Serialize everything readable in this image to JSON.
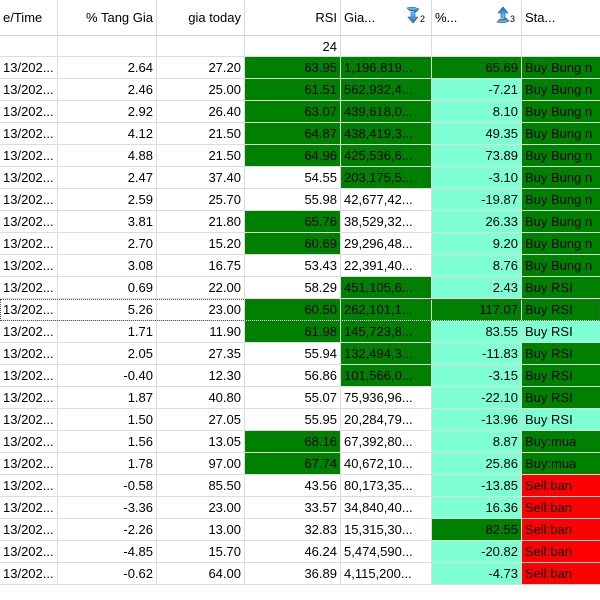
{
  "columns": [
    {
      "label": "e/Time"
    },
    {
      "label": "% Tang Gia"
    },
    {
      "label": "gia today"
    },
    {
      "label": "RSI"
    },
    {
      "label": "Gia...",
      "sort": {
        "direction": "desc",
        "priority": "2",
        "icon": "sort-descending-icon"
      }
    },
    {
      "label": "%...",
      "sort": {
        "direction": "asc",
        "priority": "3",
        "icon": "sort-ascending-icon"
      }
    },
    {
      "label": "Sta..."
    }
  ],
  "summary": {
    "rsi": "24"
  },
  "colors": {
    "dark_green": "#008000",
    "light_green": "#7fffd4",
    "red": "#ff0000",
    "grid": "#dcdcdc"
  },
  "rows": [
    {
      "time": "13/202...",
      "tang": "2.64",
      "gia": "27.20",
      "rsi": "63.95",
      "rsi_c": "dg",
      "vol": "1,196,819...",
      "vol_c": "dg",
      "pct": "65.69",
      "pct_c": "dg",
      "status": "Buy Bung n",
      "st_c": "dg"
    },
    {
      "time": "13/202...",
      "tang": "2.46",
      "gia": "25.00",
      "rsi": "61.51",
      "rsi_c": "dg",
      "vol": "562,932,4...",
      "vol_c": "dg",
      "pct": "-7.21",
      "pct_c": "lg",
      "status": "Buy Bung n",
      "st_c": "dg"
    },
    {
      "time": "13/202...",
      "tang": "2.92",
      "gia": "26.40",
      "rsi": "63.07",
      "rsi_c": "dg",
      "vol": "439,618,0...",
      "vol_c": "dg",
      "pct": "8.10",
      "pct_c": "lg",
      "status": "Buy Bung n",
      "st_c": "dg"
    },
    {
      "time": "13/202...",
      "tang": "4.12",
      "gia": "21.50",
      "rsi": "64.87",
      "rsi_c": "dg",
      "vol": "438,419,3...",
      "vol_c": "dg",
      "pct": "49.35",
      "pct_c": "lg",
      "status": "Buy Bung n",
      "st_c": "dg"
    },
    {
      "time": "13/202...",
      "tang": "4.88",
      "gia": "21.50",
      "rsi": "64.96",
      "rsi_c": "dg",
      "vol": "425,536,6...",
      "vol_c": "dg",
      "pct": "73.89",
      "pct_c": "lg",
      "status": "Buy Bung n",
      "st_c": "dg"
    },
    {
      "time": "13/202...",
      "tang": "2.47",
      "gia": "37.40",
      "rsi": "54.55",
      "rsi_c": "wh",
      "vol": "203,175,5...",
      "vol_c": "dg",
      "pct": "-3.10",
      "pct_c": "lg",
      "status": "Buy Bung n",
      "st_c": "dg"
    },
    {
      "time": "13/202...",
      "tang": "2.59",
      "gia": "25.70",
      "rsi": "55.98",
      "rsi_c": "wh",
      "vol": "42,677,42...",
      "vol_c": "wh",
      "pct": "-19.87",
      "pct_c": "lg",
      "status": "Buy Bung n",
      "st_c": "dg"
    },
    {
      "time": "13/202...",
      "tang": "3.81",
      "gia": "21.80",
      "rsi": "65.76",
      "rsi_c": "dg",
      "vol": "38,529,32...",
      "vol_c": "wh",
      "pct": "26.33",
      "pct_c": "lg",
      "status": "Buy Bung n",
      "st_c": "dg"
    },
    {
      "time": "13/202...",
      "tang": "2.70",
      "gia": "15.20",
      "rsi": "60.69",
      "rsi_c": "dg",
      "vol": "29,296,48...",
      "vol_c": "wh",
      "pct": "9.20",
      "pct_c": "lg",
      "status": "Buy Bung n",
      "st_c": "dg"
    },
    {
      "time": "13/202...",
      "tang": "3.08",
      "gia": "16.75",
      "rsi": "53.43",
      "rsi_c": "wh",
      "vol": "22,391,40...",
      "vol_c": "wh",
      "pct": "8.76",
      "pct_c": "lg",
      "status": "Buy Bung n",
      "st_c": "dg"
    },
    {
      "time": "13/202...",
      "tang": "0.69",
      "gia": "22.00",
      "rsi": "58.29",
      "rsi_c": "wh",
      "vol": "451,105,6...",
      "vol_c": "dg",
      "pct": "2.43",
      "pct_c": "lg",
      "status": "Buy RSI",
      "st_c": "dg"
    },
    {
      "time": "13/202...",
      "tang": "5.26",
      "gia": "23.00",
      "rsi": "60.50",
      "rsi_c": "dg",
      "vol": "262,101,1...",
      "vol_c": "dg",
      "pct": "117.07",
      "pct_c": "dg",
      "status": "Buy RSI",
      "st_c": "dg",
      "selected": true
    },
    {
      "time": "13/202...",
      "tang": "1.71",
      "gia": "11.90",
      "rsi": "61.98",
      "rsi_c": "dg",
      "vol": "145,723,8...",
      "vol_c": "dg",
      "pct": "83.55",
      "pct_c": "lg",
      "status": "Buy RSI",
      "st_c": "lg"
    },
    {
      "time": "13/202...",
      "tang": "2.05",
      "gia": "27.35",
      "rsi": "55.94",
      "rsi_c": "wh",
      "vol": "132,494,3...",
      "vol_c": "dg",
      "pct": "-11.83",
      "pct_c": "lg",
      "status": "Buy RSI",
      "st_c": "dg"
    },
    {
      "time": "13/202...",
      "tang": "-0.40",
      "gia": "12.30",
      "rsi": "56.86",
      "rsi_c": "wh",
      "vol": "101,566,0...",
      "vol_c": "dg",
      "pct": "-3.15",
      "pct_c": "lg",
      "status": "Buy RSI",
      "st_c": "dg"
    },
    {
      "time": "13/202...",
      "tang": "1.87",
      "gia": "40.80",
      "rsi": "55.07",
      "rsi_c": "wh",
      "vol": "75,936,96...",
      "vol_c": "wh",
      "pct": "-22.10",
      "pct_c": "lg",
      "status": "Buy RSI",
      "st_c": "dg"
    },
    {
      "time": "13/202...",
      "tang": "1.50",
      "gia": "27.05",
      "rsi": "55.95",
      "rsi_c": "wh",
      "vol": "20,284,79...",
      "vol_c": "wh",
      "pct": "-13.96",
      "pct_c": "lg",
      "status": "Buy RSI",
      "st_c": "lg"
    },
    {
      "time": "13/202...",
      "tang": "1.56",
      "gia": "13.05",
      "rsi": "68.16",
      "rsi_c": "dg",
      "vol": "67,392,80...",
      "vol_c": "wh",
      "pct": "8.87",
      "pct_c": "lg",
      "status": "Buy:mua",
      "st_c": "dg"
    },
    {
      "time": "13/202...",
      "tang": "1.78",
      "gia": "97.00",
      "rsi": "67.74",
      "rsi_c": "dg",
      "vol": "40,672,10...",
      "vol_c": "wh",
      "pct": "25.86",
      "pct_c": "lg",
      "status": "Buy:mua",
      "st_c": "dg"
    },
    {
      "time": "13/202...",
      "tang": "-0.58",
      "gia": "85.50",
      "rsi": "43.56",
      "rsi_c": "wh",
      "vol": "80,173,35...",
      "vol_c": "wh",
      "pct": "-13.85",
      "pct_c": "lg",
      "status": "Sell:ban",
      "st_c": "rd"
    },
    {
      "time": "13/202...",
      "tang": "-3.36",
      "gia": "23.00",
      "rsi": "33.57",
      "rsi_c": "wh",
      "vol": "34,840,40...",
      "vol_c": "wh",
      "pct": "16.36",
      "pct_c": "lg",
      "status": "Sell:ban",
      "st_c": "rd"
    },
    {
      "time": "13/202...",
      "tang": "-2.26",
      "gia": "13.00",
      "rsi": "32.83",
      "rsi_c": "wh",
      "vol": "15,315,30...",
      "vol_c": "wh",
      "pct": "82.55",
      "pct_c": "dg",
      "status": "Sell:ban",
      "st_c": "rd"
    },
    {
      "time": "13/202...",
      "tang": "-4.85",
      "gia": "15.70",
      "rsi": "46.24",
      "rsi_c": "wh",
      "vol": "5,474,590...",
      "vol_c": "wh",
      "pct": "-20.82",
      "pct_c": "lg",
      "status": "Sell:ban",
      "st_c": "rd"
    },
    {
      "time": "13/202...",
      "tang": "-0.62",
      "gia": "64.00",
      "rsi": "36.89",
      "rsi_c": "wh",
      "vol": "4,115,200...",
      "vol_c": "wh",
      "pct": "-4.73",
      "pct_c": "lg",
      "status": "Sell:ban",
      "st_c": "rd"
    }
  ]
}
